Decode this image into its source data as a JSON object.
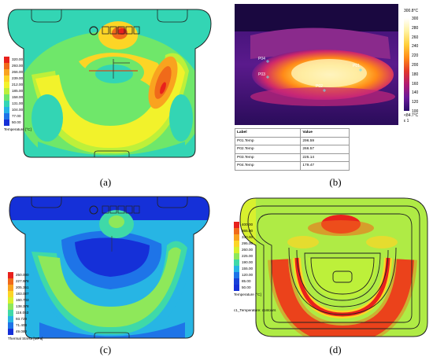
{
  "panels": {
    "a": {
      "caption": "(a)",
      "legend": {
        "values": [
          "320.00",
          "293.00",
          "266.00",
          "239.00",
          "212.00",
          "185.00",
          "158.00",
          "131.00",
          "104.00",
          "77.00",
          "50.00"
        ],
        "colors": [
          "#e8211c",
          "#f06a1a",
          "#f9a31f",
          "#fcd526",
          "#f2f22b",
          "#bdf03a",
          "#6fe76a",
          "#33d5b4",
          "#25b3e6",
          "#1e74e8",
          "#1530d8"
        ],
        "title": "Temperature [°C]"
      }
    },
    "b": {
      "caption": "(b)",
      "scale_top": "300.8°C",
      "scale_bottom": "<84.7°C",
      "scale_emissivity": "ε 1",
      "ticks": [
        "300",
        "280",
        "260",
        "240",
        "220",
        "200",
        "180",
        "160",
        "140",
        "120",
        "100"
      ],
      "points": [
        "P04",
        "P03",
        "P01",
        "P02"
      ],
      "table": {
        "headers": [
          "Label",
          "Value"
        ],
        "rows": [
          [
            "P01.Temp",
            "296.59"
          ],
          [
            "P02.Temp",
            "266.57"
          ],
          [
            "P03.Temp",
            "225.14"
          ],
          [
            "P04.Temp",
            "179.47"
          ]
        ]
      }
    },
    "c": {
      "caption": "(c)",
      "legend": {
        "values": [
          "250.000",
          "227.978",
          "205.351",
          "183.027",
          "160.703",
          "138.378",
          "116.053",
          "93.729",
          "71.404",
          "49.080"
        ],
        "colors": [
          "#e8211c",
          "#f06a1a",
          "#f9a31f",
          "#fcd526",
          "#d8f02e",
          "#8ee85a",
          "#3fd9a8",
          "#27b5e4",
          "#1e74e8",
          "#1530d8"
        ],
        "title": "Thermal Stress [MPa]"
      }
    },
    "d": {
      "caption": "(d)",
      "legend": {
        "values": [
          "400.00",
          "365.00",
          "330.00",
          "295.00",
          "260.00",
          "225.00",
          "190.00",
          "155.00",
          "120.00",
          "85.00",
          "50.00"
        ],
        "colors": [
          "#e8211c",
          "#f06a1a",
          "#f9a31f",
          "#fcd526",
          "#d8f02e",
          "#8ee85a",
          "#3fd9a8",
          "#27b5e4",
          "#1e74e8",
          "#1840d8",
          "#1530d8"
        ],
        "title": "Temperature [°C]",
        "subtitle": "c1_Temperature: contours"
      }
    }
  }
}
